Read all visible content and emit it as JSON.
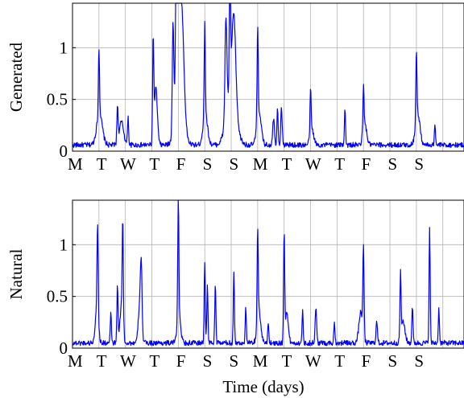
{
  "chart_data": [
    {
      "type": "line",
      "ylabel": "Generated",
      "xlabel": "",
      "ylim": [
        0,
        1.43
      ],
      "xlim": [
        0,
        14.8
      ],
      "yticks": [
        0,
        0.5,
        1
      ],
      "ytick_labels": [
        "0",
        "0.5",
        "1"
      ],
      "day_labels": [
        "M",
        "T",
        "W",
        "T",
        "F",
        "S",
        "S",
        "M",
        "T",
        "W",
        "T",
        "F",
        "S",
        "S"
      ],
      "grid": true,
      "color": "#0000ff",
      "series": [
        {
          "baseline": 0.06,
          "peaks": [
            [
              1.0,
              0.65,
              0.03
            ],
            [
              1.02,
              0.3,
              0.15
            ],
            [
              1.7,
              0.35,
              0.03
            ],
            [
              1.85,
              0.22,
              0.12
            ],
            [
              2.1,
              0.27,
              0.03
            ],
            [
              3.05,
              0.98,
              0.03
            ],
            [
              3.15,
              0.55,
              0.08
            ],
            [
              3.8,
              1.02,
              0.04
            ],
            [
              3.92,
              1.32,
              0.03
            ],
            [
              4.0,
              0.9,
              0.1
            ],
            [
              4.05,
              0.75,
              0.2
            ],
            [
              4.15,
              0.6,
              0.1
            ],
            [
              5.0,
              0.88,
              0.03
            ],
            [
              5.02,
              0.3,
              0.12
            ],
            [
              5.8,
              0.95,
              0.05
            ],
            [
              5.95,
              1.28,
              0.03
            ],
            [
              6.1,
              0.8,
              0.1
            ],
            [
              6.0,
              0.55,
              0.25
            ],
            [
              7.0,
              0.92,
              0.03
            ],
            [
              7.05,
              0.3,
              0.12
            ],
            [
              7.6,
              0.25,
              0.05
            ],
            [
              7.75,
              0.38,
              0.03
            ],
            [
              7.9,
              0.35,
              0.04
            ],
            [
              9.0,
              0.42,
              0.03
            ],
            [
              9.05,
              0.15,
              0.1
            ],
            [
              10.3,
              0.36,
              0.03
            ],
            [
              11.0,
              0.41,
              0.03
            ],
            [
              11.05,
              0.2,
              0.1
            ],
            [
              13.0,
              0.65,
              0.03
            ],
            [
              13.05,
              0.3,
              0.12
            ],
            [
              13.7,
              0.2,
              0.03
            ]
          ]
        }
      ]
    },
    {
      "type": "line",
      "ylabel": "Natural",
      "xlabel": "Time (days)",
      "ylim": [
        0,
        1.43
      ],
      "xlim": [
        0,
        14.8
      ],
      "yticks": [
        0,
        0.5,
        1
      ],
      "ytick_labels": [
        "0",
        "0.5",
        "1"
      ],
      "day_labels": [
        "M",
        "T",
        "W",
        "T",
        "F",
        "S",
        "S",
        "M",
        "T",
        "W",
        "T",
        "F",
        "S",
        "S"
      ],
      "grid": true,
      "color": "#0000ff",
      "series": [
        {
          "baseline": 0.05,
          "peaks": [
            [
              0.95,
              0.84,
              0.03
            ],
            [
              0.92,
              0.36,
              0.08
            ],
            [
              1.45,
              0.28,
              0.03
            ],
            [
              1.7,
              0.55,
              0.03
            ],
            [
              1.9,
              0.98,
              0.03
            ],
            [
              1.85,
              0.35,
              0.08
            ],
            [
              2.6,
              0.57,
              0.04
            ],
            [
              2.55,
              0.4,
              0.08
            ],
            [
              4.0,
              1.17,
              0.03
            ],
            [
              4.02,
              0.25,
              0.1
            ],
            [
              5.0,
              0.8,
              0.03
            ],
            [
              5.1,
              0.55,
              0.03
            ],
            [
              5.4,
              0.57,
              0.03
            ],
            [
              6.1,
              0.68,
              0.03
            ],
            [
              6.55,
              0.33,
              0.03
            ],
            [
              7.0,
              0.87,
              0.03
            ],
            [
              7.05,
              0.3,
              0.1
            ],
            [
              7.4,
              0.2,
              0.03
            ],
            [
              8.0,
              1.02,
              0.03
            ],
            [
              8.1,
              0.3,
              0.08
            ],
            [
              8.7,
              0.3,
              0.03
            ],
            [
              9.2,
              0.33,
              0.04
            ],
            [
              9.9,
              0.2,
              0.03
            ],
            [
              11.0,
              0.85,
              0.03
            ],
            [
              10.9,
              0.3,
              0.1
            ],
            [
              11.5,
              0.2,
              0.04
            ],
            [
              12.4,
              0.62,
              0.03
            ],
            [
              12.5,
              0.2,
              0.1
            ],
            [
              12.85,
              0.37,
              0.03
            ],
            [
              13.5,
              1.1,
              0.03
            ],
            [
              13.85,
              0.33,
              0.03
            ]
          ]
        }
      ]
    }
  ]
}
